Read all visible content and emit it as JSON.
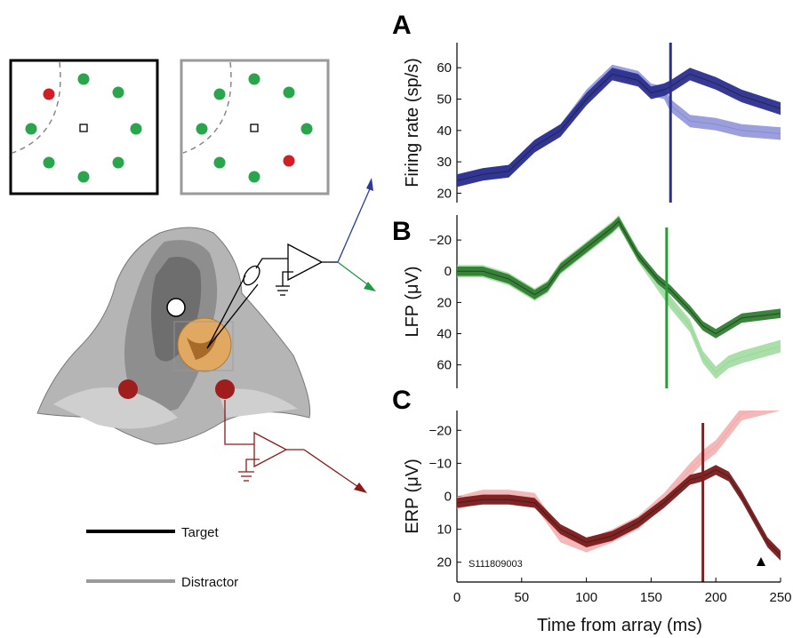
{
  "figure": {
    "legend": [
      {
        "label": "Target",
        "color": "#000000"
      },
      {
        "label": "Distractor",
        "color": "#9a9a9a"
      }
    ],
    "session_label": "S111809003",
    "xlabel": "Time from array (ms)",
    "x_ticks": [
      "0",
      "50",
      "100",
      "150",
      "200",
      "250"
    ],
    "panels_letters": [
      "A",
      "B",
      "C"
    ]
  },
  "chart_data": [
    {
      "type": "line",
      "panel": "A",
      "ylabel": "Firing rate (sp/s)",
      "ylim": [
        17,
        68
      ],
      "y_inverted": false,
      "yticks": [
        20,
        30,
        40,
        50,
        60
      ],
      "xlim": [
        0,
        250
      ],
      "marker_time": 165,
      "colors": {
        "target": "#2b2f8f",
        "distractor": "#7a7fd0",
        "marker": "#2b2f8f"
      },
      "x": [
        0,
        20,
        40,
        60,
        80,
        100,
        120,
        140,
        150,
        160,
        165,
        180,
        200,
        220,
        250
      ],
      "series": [
        {
          "name": "Target",
          "values": [
            24,
            26,
            27,
            35,
            40,
            50,
            58,
            56,
            52,
            53,
            54,
            58,
            55,
            51,
            47
          ],
          "band": 2
        },
        {
          "name": "Distractor",
          "values": [
            24,
            26,
            27,
            35,
            40,
            51,
            59,
            57,
            53,
            52,
            48,
            43,
            42,
            40,
            39
          ],
          "band": 2
        }
      ]
    },
    {
      "type": "line",
      "panel": "B",
      "ylabel": "LFP (μV)",
      "ylim": [
        -36,
        75
      ],
      "y_inverted": true,
      "yticks": [
        -20,
        0,
        20,
        40,
        60
      ],
      "xlim": [
        0,
        250
      ],
      "marker_time": 162,
      "colors": {
        "target": "#2f7d32",
        "distractor": "#8ed48c",
        "marker": "#2a9a36"
      },
      "x": [
        0,
        20,
        40,
        60,
        70,
        80,
        100,
        120,
        125,
        140,
        155,
        165,
        180,
        190,
        200,
        210,
        220,
        250
      ],
      "series": [
        {
          "name": "Target",
          "values": [
            0,
            0,
            5,
            15,
            10,
            -2,
            -15,
            -28,
            -32,
            -10,
            5,
            12,
            25,
            35,
            40,
            35,
            30,
            27
          ],
          "band": 3
        },
        {
          "name": "Distractor",
          "values": [
            0,
            0,
            5,
            15,
            10,
            -2,
            -15,
            -28,
            -32,
            -10,
            8,
            20,
            35,
            55,
            65,
            58,
            55,
            48
          ],
          "band": 4
        }
      ]
    },
    {
      "type": "line",
      "panel": "C",
      "ylabel": "ERP (μV)",
      "ylim": [
        -26,
        26
      ],
      "y_inverted": true,
      "yticks": [
        -20,
        -10,
        0,
        10,
        20
      ],
      "xlim": [
        0,
        250
      ],
      "marker_time": 190,
      "colors": {
        "target": "#7a1a1a",
        "distractor": "#f0a0a0",
        "marker": "#8b1a1a"
      },
      "x": [
        0,
        20,
        40,
        60,
        80,
        100,
        120,
        140,
        160,
        180,
        190,
        200,
        210,
        220,
        240,
        250
      ],
      "series": [
        {
          "name": "Target",
          "values": [
            2,
            1,
            1,
            2,
            10,
            14,
            12,
            8,
            2,
            -5,
            -6,
            -8,
            -6,
            0,
            14,
            18
          ],
          "band": 1.5
        },
        {
          "name": "Distractor",
          "values": [
            2,
            0,
            0,
            1,
            12,
            15,
            12,
            8,
            1,
            -8,
            -12,
            -15,
            -20,
            -25,
            -27,
            -28
          ],
          "band": 2
        }
      ]
    }
  ]
}
